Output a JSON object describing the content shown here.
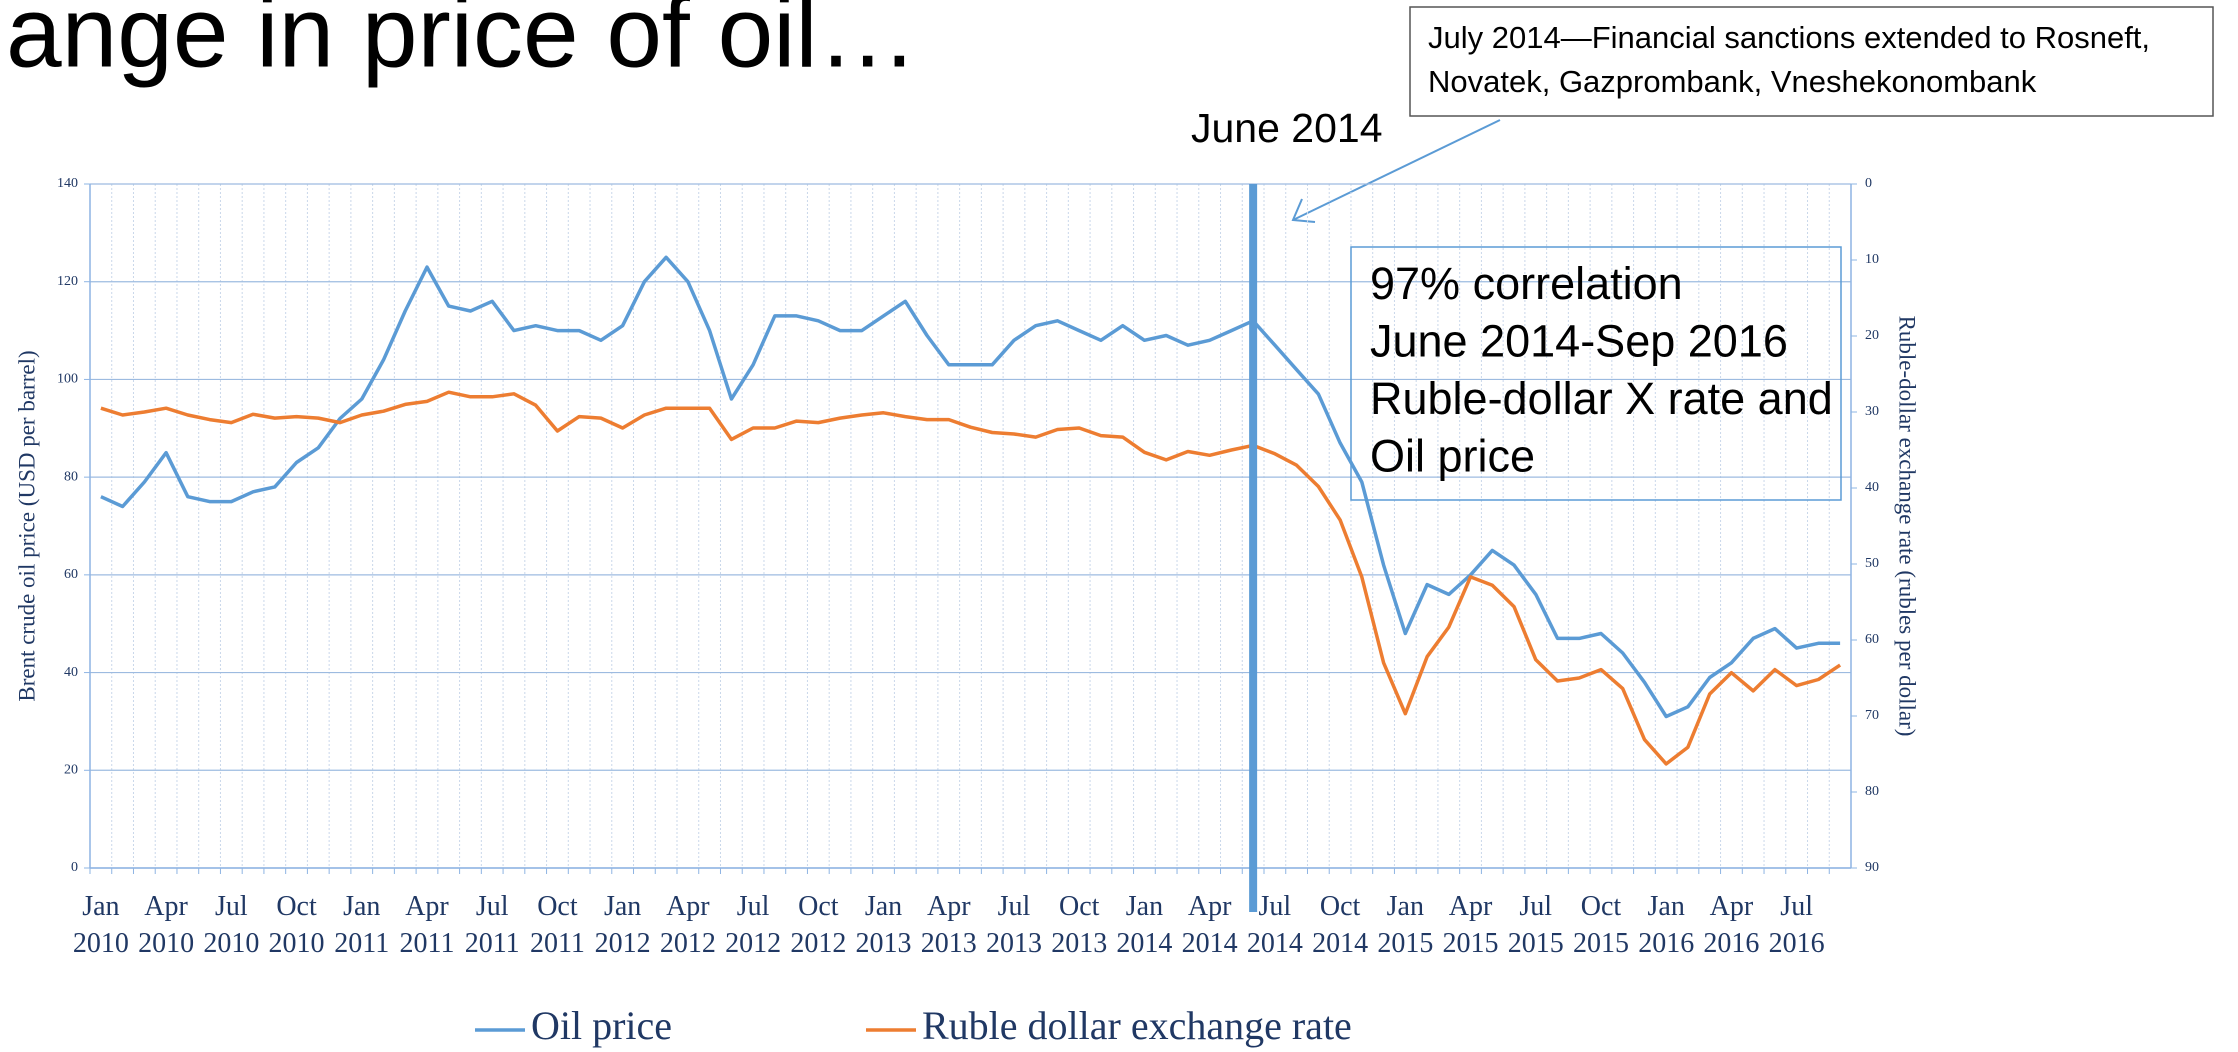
{
  "chart_data": {
    "type": "line",
    "title": "ange in price of oil…",
    "y_label": "Brent crude oil price (USD per barrel)",
    "y2_label": "Ruble-dollar exchange rate (rubles per dollar)",
    "marker_label": "June 2014",
    "callout": [
      "July 2014—Financial sanctions extended to Rosneft,",
      "Novatek, Gazprombank, Vneshekonombank"
    ],
    "note": [
      "97% correlation",
      "June 2014-Sep 2016",
      "Ruble-dollar X rate and",
      "Oil price"
    ],
    "categories": [
      "Jan 2010",
      null,
      null,
      "Apr 2010",
      null,
      null,
      "Jul 2010",
      null,
      null,
      "Oct 2010",
      null,
      null,
      "Jan 2011",
      null,
      null,
      "Apr 2011",
      null,
      null,
      "Jul 2011",
      null,
      null,
      "Oct 2011",
      null,
      null,
      "Jan 2012",
      null,
      null,
      "Apr 2012",
      null,
      null,
      "Jul 2012",
      null,
      null,
      "Oct 2012",
      null,
      null,
      "Jan 2013",
      null,
      null,
      "Apr 2013",
      null,
      null,
      "Jul 2013",
      null,
      null,
      "Oct 2013",
      null,
      null,
      "Jan 2014",
      null,
      null,
      "Apr 2014",
      null,
      null,
      "Jul 2014",
      null,
      null,
      "Oct 2014",
      null,
      null,
      "Jan 2015",
      null,
      null,
      "Apr 2015",
      null,
      null,
      "Jul 2015",
      null,
      null,
      "Oct 2015",
      null,
      null,
      "Jan 2016",
      null,
      null,
      "Apr 2016",
      null,
      null,
      "Jul 2016",
      null,
      null
    ],
    "series": [
      {
        "name": "Oil price",
        "color": "#5b9bd5",
        "values": [
          76,
          74,
          79,
          85,
          76,
          75,
          75,
          77,
          78,
          83,
          86,
          92,
          96,
          104,
          114,
          123,
          115,
          114,
          116,
          110,
          111,
          110,
          110,
          108,
          111,
          120,
          125,
          120,
          110,
          96,
          103,
          113,
          113,
          112,
          110,
          110,
          113,
          116,
          109,
          103,
          103,
          103,
          108,
          111,
          112,
          110,
          108,
          111,
          108,
          109,
          107,
          108,
          110,
          112,
          107,
          102,
          97,
          87,
          79,
          62,
          48,
          58,
          56,
          60,
          65,
          62,
          56,
          47,
          47,
          48,
          44,
          38,
          31,
          33,
          39,
          42,
          47,
          49,
          45,
          46,
          46
        ]
      },
      {
        "name": "Ruble dollar exchange rate",
        "color": "#ed7d31",
        "axis": "y2",
        "values": [
          29.5,
          30.4,
          30,
          29.5,
          30.4,
          31,
          31.4,
          30.3,
          30.8,
          30.6,
          30.8,
          31.4,
          30.4,
          29.9,
          29,
          28.6,
          27.4,
          28,
          28,
          27.6,
          29.1,
          32.5,
          30.6,
          30.8,
          32.1,
          30.4,
          29.5,
          29.5,
          29.5,
          33.6,
          32.1,
          32.1,
          31.2,
          31.4,
          30.8,
          30.4,
          30.1,
          30.6,
          31,
          31,
          32,
          32.7,
          32.9,
          33.3,
          32.3,
          32.1,
          33.1,
          33.3,
          35.3,
          36.3,
          35.2,
          35.7,
          35,
          34.4,
          35.5,
          37,
          39.8,
          44.2,
          51.7,
          63,
          69.7,
          62.2,
          58.3,
          51.7,
          52.8,
          55.6,
          62.6,
          65.4,
          65,
          63.9,
          66.4,
          73.1,
          76.3,
          74.1,
          67.1,
          64.3,
          66.7,
          63.9,
          66,
          65.2,
          63.3
        ]
      }
    ],
    "ylim": [
      0,
      140
    ],
    "yticks": [
      0,
      20,
      40,
      60,
      80,
      100,
      120,
      140
    ],
    "y2lim": [
      0,
      90
    ],
    "y2ticks": [
      0,
      10,
      20,
      30,
      40,
      50,
      60,
      70,
      80,
      90
    ],
    "y2_reversed": true,
    "grid": true,
    "legend": "bottom"
  }
}
